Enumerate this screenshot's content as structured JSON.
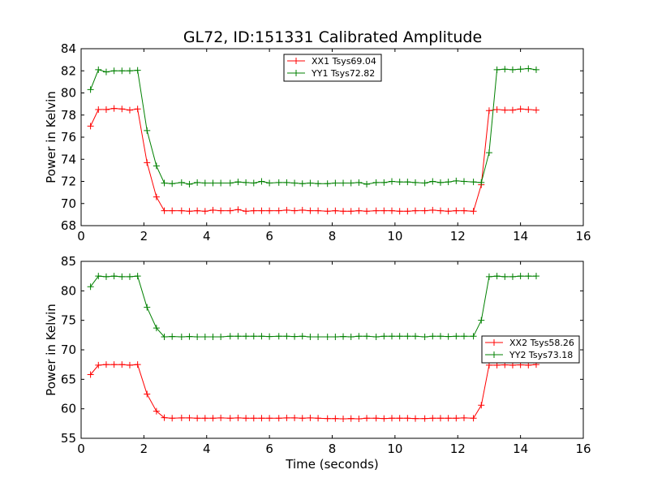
{
  "title": "GL72, ID:151331 Calibrated Amplitude",
  "chart_data": [
    {
      "type": "line",
      "ylabel": "Power in Kelvin",
      "xlabel": "",
      "xlim": [
        0,
        16
      ],
      "ylim": [
        68,
        84
      ],
      "xticks": [
        0,
        2,
        4,
        6,
        8,
        10,
        12,
        14,
        16
      ],
      "yticks": [
        68,
        70,
        72,
        74,
        76,
        78,
        80,
        82,
        84
      ],
      "legend_position": "top-center",
      "x": [
        0.3,
        0.55,
        0.8,
        1.05,
        1.3,
        1.55,
        1.8,
        2.1,
        2.4,
        2.65,
        2.9,
        3.2,
        3.45,
        3.7,
        3.95,
        4.2,
        4.45,
        4.75,
        5.0,
        5.25,
        5.5,
        5.75,
        6.0,
        6.3,
        6.55,
        6.8,
        7.05,
        7.3,
        7.55,
        7.85,
        8.1,
        8.35,
        8.6,
        8.85,
        9.1,
        9.4,
        9.65,
        9.9,
        10.15,
        10.4,
        10.65,
        10.95,
        11.2,
        11.45,
        11.7,
        11.95,
        12.2,
        12.5,
        12.75,
        13.0,
        13.25,
        13.5,
        13.75,
        14.0,
        14.25,
        14.5
      ],
      "series": [
        {
          "name": "XX1 Tsys69.04",
          "color": "#ff0000",
          "values": [
            77.0,
            78.5,
            78.5,
            78.6,
            78.55,
            78.45,
            78.55,
            73.7,
            70.6,
            69.35,
            69.35,
            69.35,
            69.3,
            69.35,
            69.3,
            69.4,
            69.35,
            69.35,
            69.45,
            69.3,
            69.35,
            69.35,
            69.35,
            69.35,
            69.4,
            69.35,
            69.4,
            69.35,
            69.35,
            69.3,
            69.35,
            69.3,
            69.3,
            69.35,
            69.3,
            69.35,
            69.35,
            69.35,
            69.3,
            69.3,
            69.35,
            69.35,
            69.4,
            69.35,
            69.3,
            69.35,
            69.35,
            69.3,
            71.7,
            78.4,
            78.5,
            78.45,
            78.45,
            78.55,
            78.5,
            78.45
          ]
        },
        {
          "name": "YY1 Tsys72.82",
          "color": "#008000",
          "values": [
            80.3,
            82.1,
            81.9,
            82.0,
            82.0,
            82.0,
            82.05,
            76.6,
            73.4,
            71.85,
            71.8,
            71.9,
            71.75,
            71.9,
            71.85,
            71.85,
            71.85,
            71.85,
            71.95,
            71.9,
            71.85,
            72.0,
            71.85,
            71.9,
            71.9,
            71.85,
            71.8,
            71.85,
            71.8,
            71.8,
            71.85,
            71.85,
            71.85,
            71.9,
            71.75,
            71.9,
            71.9,
            72.0,
            71.95,
            71.95,
            71.9,
            71.85,
            72.0,
            71.9,
            71.95,
            72.05,
            72.0,
            71.95,
            71.9,
            74.6,
            82.1,
            82.15,
            82.1,
            82.15,
            82.2,
            82.1
          ]
        }
      ]
    },
    {
      "type": "line",
      "ylabel": "Power in Kelvin",
      "xlabel": "Time (seconds)",
      "xlim": [
        0,
        16
      ],
      "ylim": [
        55,
        85
      ],
      "xticks": [
        0,
        2,
        4,
        6,
        8,
        10,
        12,
        14,
        16
      ],
      "yticks": [
        55,
        60,
        65,
        70,
        75,
        80,
        85
      ],
      "legend_position": "center-right",
      "x": [
        0.3,
        0.55,
        0.8,
        1.05,
        1.3,
        1.55,
        1.8,
        2.1,
        2.4,
        2.65,
        2.9,
        3.2,
        3.45,
        3.7,
        3.95,
        4.2,
        4.45,
        4.75,
        5.0,
        5.25,
        5.5,
        5.75,
        6.0,
        6.3,
        6.55,
        6.8,
        7.05,
        7.3,
        7.55,
        7.85,
        8.1,
        8.35,
        8.6,
        8.85,
        9.1,
        9.4,
        9.65,
        9.9,
        10.15,
        10.4,
        10.65,
        10.95,
        11.2,
        11.45,
        11.7,
        11.95,
        12.2,
        12.5,
        12.75,
        13.0,
        13.25,
        13.5,
        13.75,
        14.0,
        14.25,
        14.5
      ],
      "series": [
        {
          "name": "XX2 Tsys58.26",
          "color": "#ff0000",
          "values": [
            65.8,
            67.4,
            67.5,
            67.5,
            67.5,
            67.4,
            67.5,
            62.5,
            59.6,
            58.5,
            58.4,
            58.45,
            58.45,
            58.4,
            58.4,
            58.4,
            58.45,
            58.4,
            58.45,
            58.4,
            58.4,
            58.4,
            58.4,
            58.4,
            58.45,
            58.45,
            58.4,
            58.45,
            58.4,
            58.35,
            58.35,
            58.3,
            58.35,
            58.3,
            58.4,
            58.4,
            58.35,
            58.4,
            58.4,
            58.4,
            58.35,
            58.35,
            58.4,
            58.4,
            58.4,
            58.4,
            58.45,
            58.4,
            60.6,
            67.4,
            67.4,
            67.45,
            67.4,
            67.45,
            67.4,
            67.5
          ]
        },
        {
          "name": "YY2 Tsys73.18",
          "color": "#008000",
          "values": [
            80.7,
            82.5,
            82.4,
            82.5,
            82.4,
            82.4,
            82.5,
            77.2,
            73.7,
            72.2,
            72.25,
            72.2,
            72.25,
            72.2,
            72.2,
            72.2,
            72.2,
            72.3,
            72.3,
            72.3,
            72.3,
            72.3,
            72.25,
            72.3,
            72.3,
            72.25,
            72.3,
            72.2,
            72.2,
            72.2,
            72.2,
            72.25,
            72.2,
            72.3,
            72.3,
            72.2,
            72.3,
            72.3,
            72.3,
            72.3,
            72.3,
            72.2,
            72.3,
            72.3,
            72.25,
            72.3,
            72.3,
            72.3,
            75.0,
            82.4,
            82.5,
            82.4,
            82.4,
            82.5,
            82.5,
            82.5
          ]
        }
      ]
    }
  ]
}
